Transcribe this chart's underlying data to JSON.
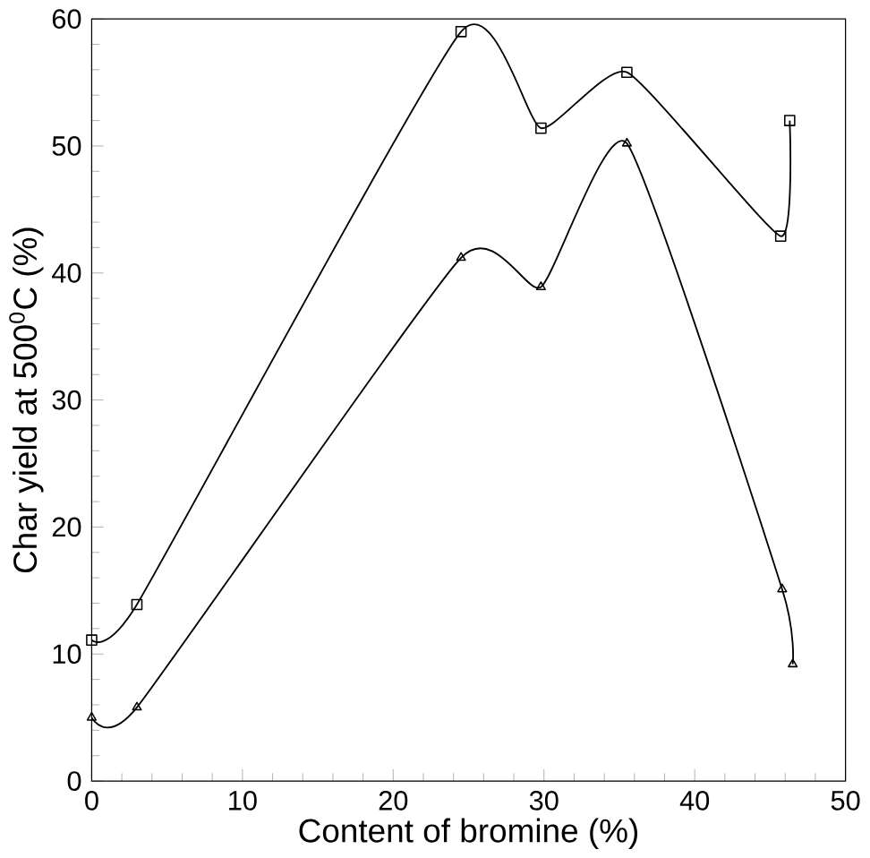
{
  "chart_data": {
    "type": "line",
    "xlabel": "Content of bromine (%)",
    "ylabel": "Char yield at 500$^{0}$C (%)",
    "xlim": [
      0,
      50
    ],
    "ylim": [
      0,
      60
    ],
    "xticks": [
      0,
      10,
      20,
      30,
      40,
      50
    ],
    "yticks": [
      0,
      10,
      20,
      30,
      40,
      50,
      60
    ],
    "grid": false,
    "series": [
      {
        "color": "#000000",
        "marker": "square",
        "x": [
          0,
          3,
          24.5,
          29.8,
          35.5,
          45.7,
          46.3
        ],
        "values": [
          11.1,
          13.9,
          59.0,
          51.4,
          55.8,
          42.9,
          52.0
        ]
      },
      {
        "color": "#000000",
        "marker": "triangle",
        "x": [
          0,
          3,
          24.5,
          29.8,
          35.5,
          45.8,
          46.5
        ],
        "values": [
          5.0,
          5.8,
          41.2,
          38.9,
          50.2,
          15.1,
          9.2
        ]
      }
    ]
  }
}
